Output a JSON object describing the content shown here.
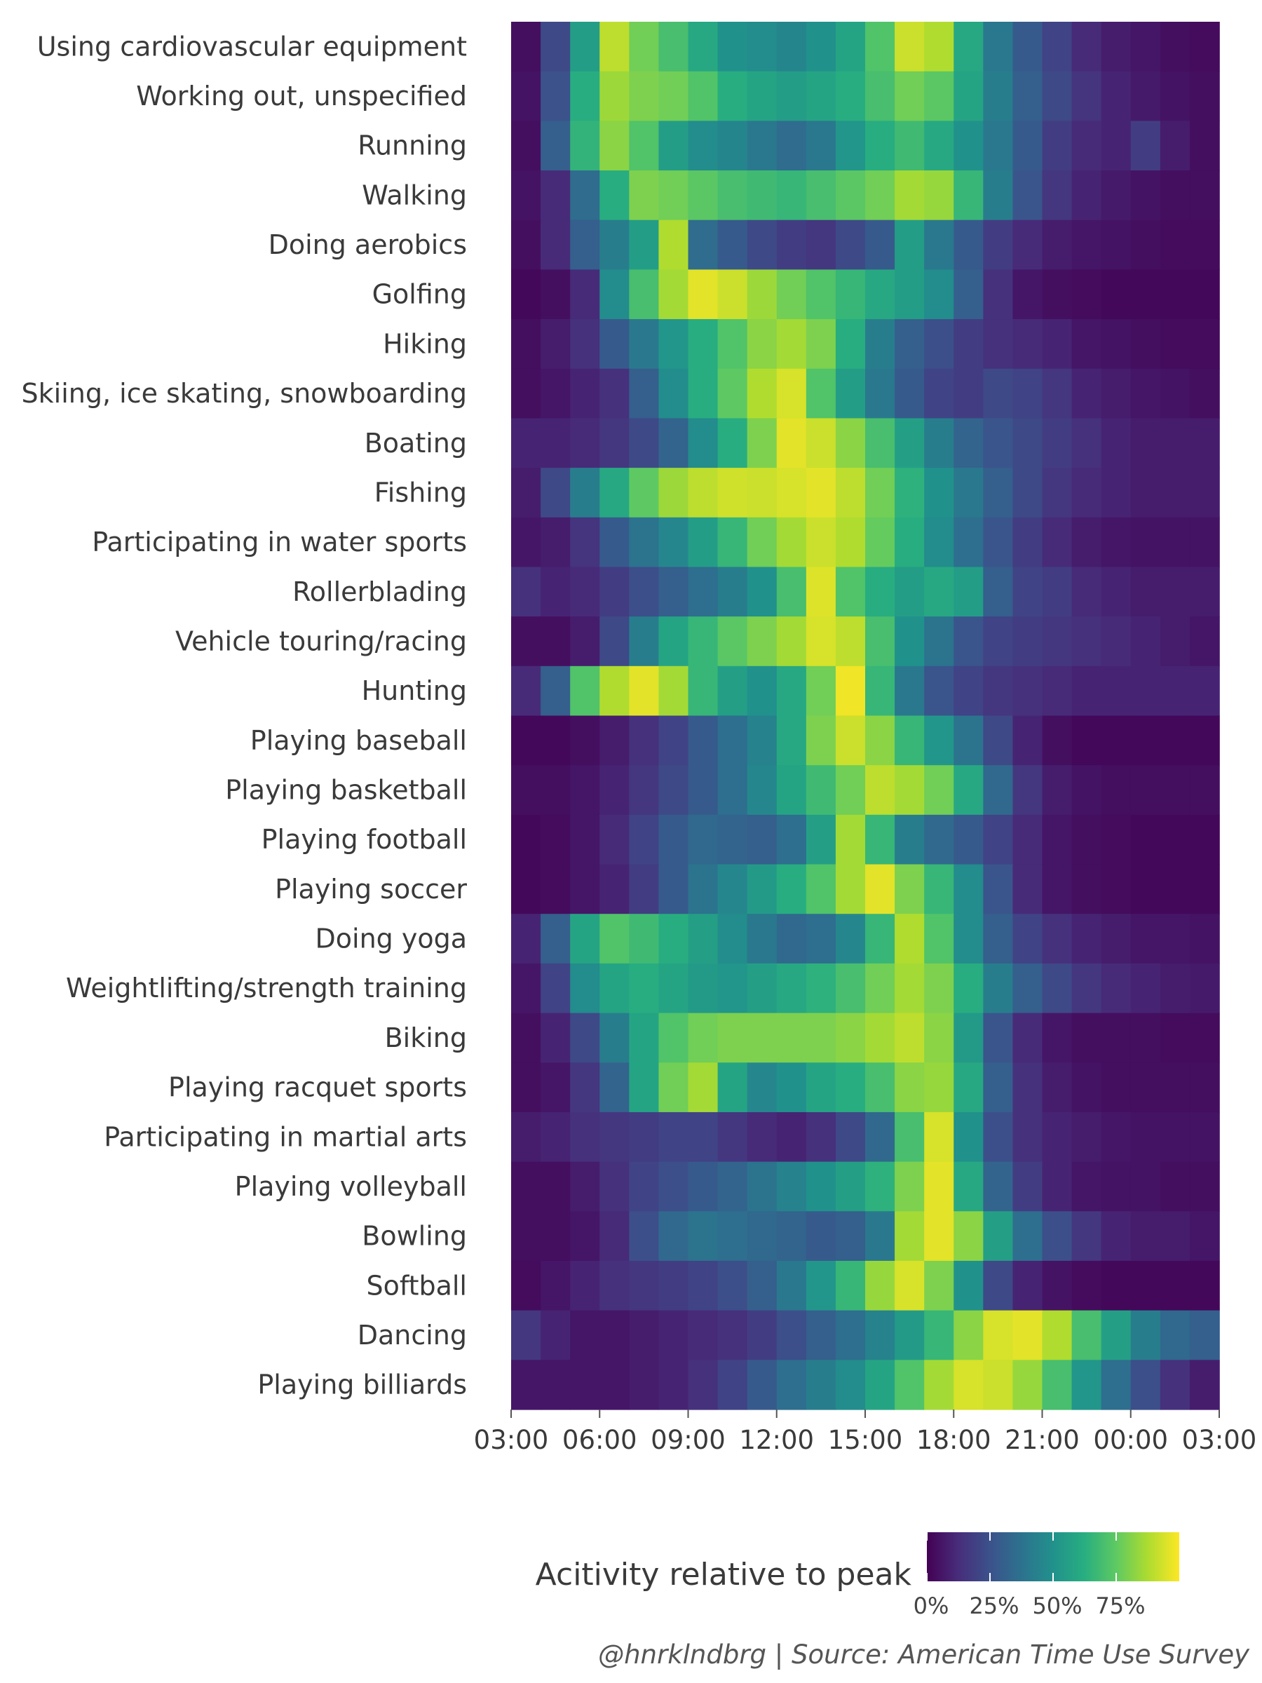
{
  "chart_data": {
    "type": "heatmap",
    "colormap": "viridis",
    "colors": {
      "low": "#440154",
      "mid": "#21918c",
      "high": "#fde725"
    },
    "x_ticks": [
      "03:00",
      "06:00",
      "09:00",
      "12:00",
      "15:00",
      "18:00",
      "21:00",
      "00:00",
      "03:00"
    ],
    "x_hours": [
      3,
      4,
      5,
      6,
      7,
      8,
      9,
      10,
      11,
      12,
      13,
      14,
      15,
      16,
      17,
      18,
      19,
      20,
      21,
      22,
      23,
      0,
      1,
      2
    ],
    "rows": [
      {
        "label": "Using cardiovascular equipment",
        "values": [
          0.04,
          0.22,
          0.55,
          0.9,
          0.78,
          0.7,
          0.6,
          0.5,
          0.48,
          0.45,
          0.5,
          0.58,
          0.72,
          0.92,
          0.88,
          0.6,
          0.4,
          0.28,
          0.2,
          0.12,
          0.08,
          0.06,
          0.04,
          0.03
        ]
      },
      {
        "label": "Working out, unspecified",
        "values": [
          0.05,
          0.25,
          0.62,
          0.85,
          0.8,
          0.78,
          0.72,
          0.62,
          0.58,
          0.55,
          0.58,
          0.62,
          0.7,
          0.78,
          0.74,
          0.58,
          0.42,
          0.3,
          0.22,
          0.15,
          0.1,
          0.07,
          0.05,
          0.04
        ]
      },
      {
        "label": "Running",
        "values": [
          0.04,
          0.3,
          0.65,
          0.82,
          0.72,
          0.55,
          0.48,
          0.45,
          0.4,
          0.35,
          0.4,
          0.52,
          0.62,
          0.68,
          0.6,
          0.5,
          0.4,
          0.28,
          0.18,
          0.12,
          0.1,
          0.18,
          0.08,
          0.04
        ]
      },
      {
        "label": "Walking",
        "values": [
          0.05,
          0.12,
          0.35,
          0.62,
          0.8,
          0.78,
          0.74,
          0.7,
          0.68,
          0.66,
          0.7,
          0.74,
          0.78,
          0.86,
          0.84,
          0.66,
          0.42,
          0.26,
          0.16,
          0.1,
          0.07,
          0.05,
          0.04,
          0.04
        ]
      },
      {
        "label": "Doing aerobics",
        "values": [
          0.04,
          0.12,
          0.3,
          0.42,
          0.55,
          0.88,
          0.35,
          0.28,
          0.22,
          0.18,
          0.16,
          0.22,
          0.28,
          0.55,
          0.4,
          0.28,
          0.18,
          0.12,
          0.08,
          0.06,
          0.05,
          0.04,
          0.03,
          0.03
        ]
      },
      {
        "label": "Golfing",
        "values": [
          0.02,
          0.04,
          0.12,
          0.48,
          0.7,
          0.86,
          0.96,
          0.92,
          0.85,
          0.78,
          0.72,
          0.66,
          0.6,
          0.55,
          0.48,
          0.3,
          0.14,
          0.06,
          0.04,
          0.03,
          0.02,
          0.02,
          0.02,
          0.02
        ]
      },
      {
        "label": "Hiking",
        "values": [
          0.04,
          0.08,
          0.14,
          0.28,
          0.4,
          0.52,
          0.62,
          0.72,
          0.82,
          0.86,
          0.8,
          0.62,
          0.42,
          0.3,
          0.24,
          0.18,
          0.14,
          0.12,
          0.1,
          0.06,
          0.05,
          0.04,
          0.03,
          0.03
        ]
      },
      {
        "label": "Skiing, ice skating, snowboarding",
        "values": [
          0.04,
          0.06,
          0.1,
          0.14,
          0.3,
          0.48,
          0.62,
          0.75,
          0.88,
          0.94,
          0.72,
          0.55,
          0.4,
          0.28,
          0.2,
          0.18,
          0.22,
          0.2,
          0.16,
          0.1,
          0.08,
          0.06,
          0.05,
          0.04
        ]
      },
      {
        "label": "Boating",
        "values": [
          0.1,
          0.1,
          0.12,
          0.16,
          0.22,
          0.32,
          0.48,
          0.62,
          0.8,
          0.96,
          0.92,
          0.82,
          0.7,
          0.56,
          0.42,
          0.32,
          0.26,
          0.22,
          0.18,
          0.14,
          0.1,
          0.08,
          0.08,
          0.08
        ]
      },
      {
        "label": "Fishing",
        "values": [
          0.08,
          0.22,
          0.42,
          0.6,
          0.75,
          0.85,
          0.9,
          0.93,
          0.92,
          0.94,
          0.96,
          0.9,
          0.78,
          0.64,
          0.5,
          0.4,
          0.3,
          0.22,
          0.16,
          0.12,
          0.1,
          0.08,
          0.08,
          0.08
        ]
      },
      {
        "label": "Participating in water sports",
        "values": [
          0.06,
          0.08,
          0.15,
          0.28,
          0.38,
          0.46,
          0.55,
          0.66,
          0.78,
          0.86,
          0.92,
          0.88,
          0.76,
          0.62,
          0.48,
          0.36,
          0.26,
          0.18,
          0.12,
          0.08,
          0.06,
          0.05,
          0.05,
          0.05
        ]
      },
      {
        "label": "Rollerblading",
        "values": [
          0.14,
          0.1,
          0.12,
          0.18,
          0.24,
          0.3,
          0.36,
          0.42,
          0.5,
          0.7,
          0.95,
          0.72,
          0.62,
          0.55,
          0.6,
          0.55,
          0.3,
          0.2,
          0.18,
          0.12,
          0.1,
          0.08,
          0.08,
          0.08
        ]
      },
      {
        "label": "Vehicle touring/racing",
        "values": [
          0.04,
          0.04,
          0.08,
          0.22,
          0.42,
          0.58,
          0.66,
          0.74,
          0.8,
          0.86,
          0.94,
          0.9,
          0.7,
          0.5,
          0.38,
          0.26,
          0.2,
          0.18,
          0.16,
          0.14,
          0.12,
          0.1,
          0.08,
          0.06
        ]
      },
      {
        "label": "Hunting",
        "values": [
          0.12,
          0.3,
          0.72,
          0.88,
          0.96,
          0.86,
          0.66,
          0.56,
          0.5,
          0.6,
          0.78,
          0.98,
          0.66,
          0.4,
          0.26,
          0.2,
          0.16,
          0.14,
          0.12,
          0.1,
          0.1,
          0.1,
          0.1,
          0.1
        ]
      },
      {
        "label": "Playing baseball",
        "values": [
          0.02,
          0.02,
          0.04,
          0.08,
          0.14,
          0.2,
          0.28,
          0.36,
          0.44,
          0.6,
          0.8,
          0.92,
          0.82,
          0.66,
          0.52,
          0.38,
          0.22,
          0.1,
          0.04,
          0.02,
          0.02,
          0.02,
          0.02,
          0.02
        ]
      },
      {
        "label": "Playing basketball",
        "values": [
          0.04,
          0.04,
          0.06,
          0.1,
          0.16,
          0.22,
          0.28,
          0.36,
          0.46,
          0.58,
          0.68,
          0.78,
          0.9,
          0.86,
          0.78,
          0.6,
          0.34,
          0.16,
          0.08,
          0.05,
          0.04,
          0.04,
          0.04,
          0.04
        ]
      },
      {
        "label": "Playing football",
        "values": [
          0.02,
          0.03,
          0.06,
          0.12,
          0.2,
          0.28,
          0.34,
          0.32,
          0.3,
          0.36,
          0.56,
          0.86,
          0.66,
          0.42,
          0.34,
          0.28,
          0.2,
          0.12,
          0.06,
          0.04,
          0.03,
          0.02,
          0.02,
          0.02
        ]
      },
      {
        "label": "Playing soccer",
        "values": [
          0.02,
          0.03,
          0.06,
          0.1,
          0.18,
          0.28,
          0.38,
          0.46,
          0.54,
          0.62,
          0.72,
          0.86,
          0.96,
          0.8,
          0.66,
          0.48,
          0.26,
          0.12,
          0.06,
          0.04,
          0.03,
          0.02,
          0.02,
          0.02
        ]
      },
      {
        "label": "Doing yoga",
        "values": [
          0.1,
          0.3,
          0.58,
          0.72,
          0.68,
          0.62,
          0.56,
          0.48,
          0.4,
          0.34,
          0.36,
          0.46,
          0.66,
          0.88,
          0.72,
          0.48,
          0.3,
          0.2,
          0.14,
          0.1,
          0.08,
          0.06,
          0.06,
          0.05
        ]
      },
      {
        "label": "Weightlifting/strength training",
        "values": [
          0.06,
          0.2,
          0.48,
          0.58,
          0.62,
          0.58,
          0.54,
          0.52,
          0.56,
          0.6,
          0.64,
          0.7,
          0.78,
          0.86,
          0.8,
          0.62,
          0.42,
          0.3,
          0.22,
          0.16,
          0.12,
          0.1,
          0.08,
          0.07
        ]
      },
      {
        "label": "Biking",
        "values": [
          0.04,
          0.1,
          0.22,
          0.42,
          0.58,
          0.72,
          0.78,
          0.8,
          0.8,
          0.8,
          0.8,
          0.82,
          0.86,
          0.9,
          0.82,
          0.54,
          0.26,
          0.12,
          0.06,
          0.04,
          0.04,
          0.04,
          0.03,
          0.03
        ]
      },
      {
        "label": "Playing racquet sports",
        "values": [
          0.04,
          0.06,
          0.16,
          0.32,
          0.58,
          0.78,
          0.86,
          0.58,
          0.46,
          0.5,
          0.58,
          0.62,
          0.7,
          0.82,
          0.84,
          0.6,
          0.3,
          0.14,
          0.08,
          0.05,
          0.04,
          0.04,
          0.04,
          0.04
        ]
      },
      {
        "label": "Participating in martial arts",
        "values": [
          0.08,
          0.1,
          0.14,
          0.16,
          0.18,
          0.2,
          0.2,
          0.16,
          0.12,
          0.1,
          0.14,
          0.22,
          0.34,
          0.7,
          0.94,
          0.5,
          0.24,
          0.14,
          0.1,
          0.08,
          0.06,
          0.05,
          0.05,
          0.05
        ]
      },
      {
        "label": "Playing volleyball",
        "values": [
          0.04,
          0.04,
          0.08,
          0.14,
          0.2,
          0.24,
          0.28,
          0.32,
          0.38,
          0.44,
          0.5,
          0.56,
          0.64,
          0.8,
          0.96,
          0.6,
          0.32,
          0.18,
          0.1,
          0.06,
          0.05,
          0.05,
          0.04,
          0.04
        ]
      },
      {
        "label": "Bowling",
        "values": [
          0.04,
          0.04,
          0.06,
          0.12,
          0.24,
          0.34,
          0.38,
          0.36,
          0.34,
          0.32,
          0.28,
          0.3,
          0.4,
          0.86,
          0.96,
          0.82,
          0.56,
          0.36,
          0.24,
          0.16,
          0.1,
          0.08,
          0.08,
          0.06
        ]
      },
      {
        "label": "Softball",
        "values": [
          0.03,
          0.06,
          0.1,
          0.14,
          0.16,
          0.18,
          0.2,
          0.24,
          0.3,
          0.4,
          0.52,
          0.66,
          0.84,
          0.94,
          0.8,
          0.5,
          0.22,
          0.1,
          0.05,
          0.03,
          0.02,
          0.02,
          0.02,
          0.02
        ]
      },
      {
        "label": "Dancing",
        "values": [
          0.16,
          0.1,
          0.06,
          0.06,
          0.08,
          0.1,
          0.12,
          0.14,
          0.18,
          0.24,
          0.3,
          0.36,
          0.44,
          0.54,
          0.66,
          0.82,
          0.94,
          0.96,
          0.88,
          0.7,
          0.56,
          0.42,
          0.34,
          0.3
        ]
      },
      {
        "label": "Playing billiards",
        "values": [
          0.06,
          0.06,
          0.06,
          0.06,
          0.08,
          0.1,
          0.14,
          0.2,
          0.28,
          0.36,
          0.42,
          0.48,
          0.58,
          0.72,
          0.86,
          0.94,
          0.92,
          0.84,
          0.7,
          0.52,
          0.36,
          0.24,
          0.14,
          0.08
        ]
      }
    ],
    "legend": {
      "title": "Acitivity relative to peak",
      "ticks": [
        "0%",
        "25%",
        "50%",
        "75%"
      ],
      "tick_values": [
        0,
        0.25,
        0.5,
        0.75
      ]
    },
    "caption": "@hnrklndbrg | Source: American Time Use Survey"
  }
}
